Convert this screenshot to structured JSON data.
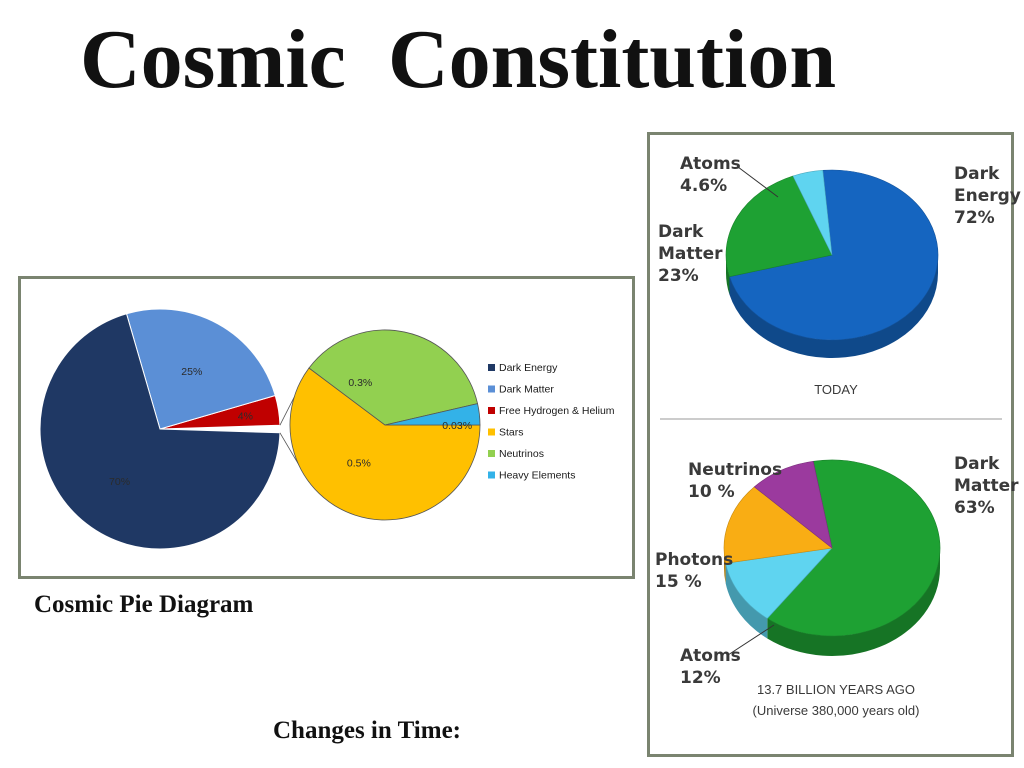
{
  "title": "Cosmic  Constitution",
  "captions": {
    "pie_diagram": "Cosmic Pie Diagram",
    "changes": "Changes in Time:"
  },
  "colors": {
    "frame_border": "#7a8470",
    "dark_energy": "#1f3864",
    "dark_matter_light": "#5b8fd6",
    "hydrogen_helium": "#c00000",
    "stars": "#ffc000",
    "neutrinos_green": "#92d050",
    "heavy_elements": "#33b2e8",
    "today_dark_energy": "#1565c0",
    "today_dark_matter": "#1ea133",
    "today_atoms": "#5fd4f0",
    "early_dark_matter": "#1ea133",
    "early_neutrinos": "#9b3a9e",
    "early_photons": "#f9ad14",
    "early_atoms": "#5fd4f0"
  },
  "chart_data": [
    {
      "type": "pie",
      "chart_name": "main-pie",
      "labels": [
        "Dark Energy",
        "Dark Matter",
        "Free Hydrogen & Helium"
      ],
      "values": [
        70,
        25,
        4
      ],
      "data_labels": [
        "70%",
        "25%",
        "4%"
      ],
      "exploded_remainder": "Stars + Neutrinos + Heavy Elements"
    },
    {
      "type": "pie",
      "chart_name": "detail-pie",
      "labels": [
        "Stars",
        "Neutrinos",
        "Heavy Elements"
      ],
      "values": [
        0.5,
        0.3,
        0.03
      ],
      "data_labels": [
        "0.5%",
        "0.3%",
        "0.03%"
      ]
    },
    {
      "type": "legend",
      "chart_name": "pie-legend",
      "entries": [
        {
          "label": "Dark Energy",
          "color_key": "dark_energy"
        },
        {
          "label": "Dark Matter",
          "color_key": "dark_matter_light"
        },
        {
          "label": "Free Hydrogen & Helium",
          "color_key": "hydrogen_helium"
        },
        {
          "label": "Stars",
          "color_key": "stars"
        },
        {
          "label": "Neutrinos",
          "color_key": "neutrinos_green"
        },
        {
          "label": "Heavy Elements",
          "color_key": "heavy_elements"
        }
      ]
    },
    {
      "type": "pie",
      "chart_name": "today-pie",
      "caption": "TODAY",
      "labels": [
        "Dark Energy",
        "Dark Matter",
        "Atoms"
      ],
      "values": [
        72,
        23,
        4.6
      ],
      "data_labels": [
        "72%",
        "23%",
        "4.6%"
      ]
    },
    {
      "type": "pie",
      "chart_name": "early-pie",
      "caption": "13.7 BILLION YEARS AGO",
      "subcaption": "(Universe 380,000 years old)",
      "labels": [
        "Dark Matter",
        "Atoms",
        "Photons",
        "Neutrinos"
      ],
      "values": [
        63,
        12,
        15,
        10
      ],
      "data_labels": [
        "63%",
        "12%",
        "15 %",
        "10 %"
      ]
    }
  ]
}
